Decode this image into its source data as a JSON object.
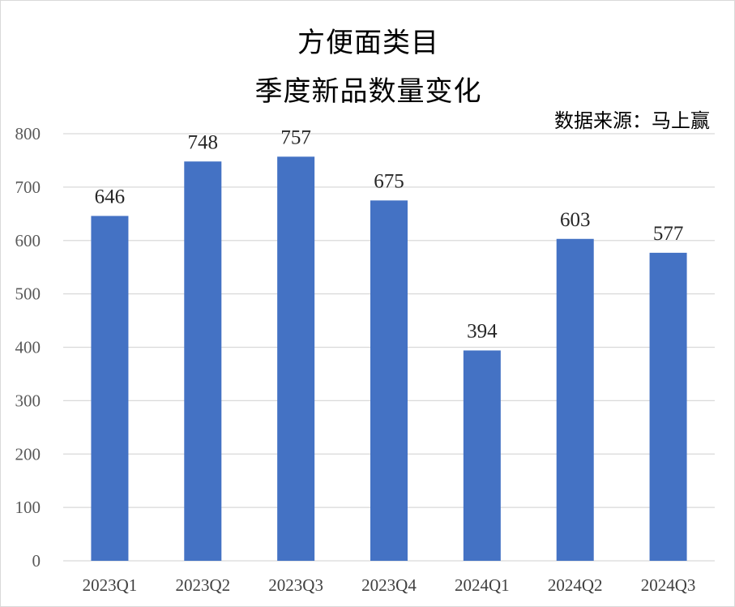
{
  "chart_data": {
    "type": "bar",
    "title_line1": "方便面类目",
    "title_line2": "季度新品数量变化",
    "source": "数据来源：马上赢",
    "categories": [
      "2023Q1",
      "2023Q2",
      "2023Q3",
      "2023Q4",
      "2024Q1",
      "2024Q2",
      "2024Q3"
    ],
    "values": [
      646,
      748,
      757,
      675,
      394,
      603,
      577
    ],
    "yticks": [
      "0",
      "100",
      "200",
      "300",
      "400",
      "500",
      "600",
      "700",
      "800"
    ],
    "ylim": [
      0,
      800
    ],
    "grid": true,
    "bar_color": "#4472C4",
    "grid_color": "#d9d9d9"
  }
}
